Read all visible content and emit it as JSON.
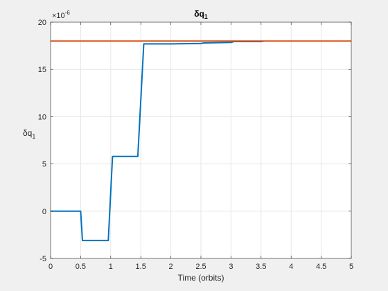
{
  "chart_data": {
    "type": "line",
    "title": "δq",
    "title_subscript": "1",
    "xlabel": "Time (orbits)",
    "ylabel": "δq",
    "ylabel_subscript": "1",
    "y_exponent_label": "×10",
    "y_exponent_power": "-6",
    "xlim": [
      0,
      5
    ],
    "ylim": [
      -5,
      20
    ],
    "xticks": [
      0,
      0.5,
      1,
      1.5,
      2,
      2.5,
      3,
      3.5,
      4,
      4.5,
      5
    ],
    "xtick_labels": [
      "0",
      "0.5",
      "1",
      "1.5",
      "2",
      "2.5",
      "3",
      "3.5",
      "4",
      "4.5",
      "5"
    ],
    "yticks": [
      -5,
      0,
      5,
      10,
      15,
      20
    ],
    "ytick_labels": [
      "-5",
      "0",
      "5",
      "10",
      "15",
      "20"
    ],
    "grid": true,
    "series": [
      {
        "color": "#0072BD",
        "x": [
          0,
          0.5,
          0.53,
          0.96,
          1.03,
          1.45,
          1.55,
          2.0,
          2.5,
          2.55,
          3.0,
          3.05,
          3.5,
          3.55
        ],
        "y": [
          0,
          0,
          -3.1,
          -3.1,
          5.8,
          5.8,
          17.7,
          17.7,
          17.75,
          17.8,
          17.85,
          17.95,
          17.95,
          18.0
        ]
      },
      {
        "color": "#D95319",
        "x": [
          0,
          5
        ],
        "y": [
          18.0,
          18.0
        ]
      }
    ]
  }
}
